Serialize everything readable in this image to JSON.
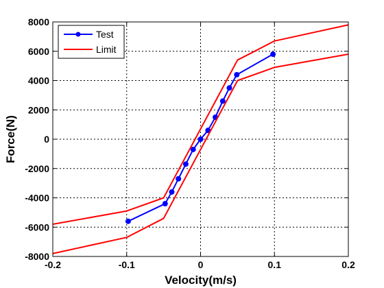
{
  "chart_data": {
    "type": "line",
    "xlabel": "Velocity(m/s)",
    "ylabel": "Force(N)",
    "xlim": [
      -0.2,
      0.2
    ],
    "ylim": [
      -8000,
      8000
    ],
    "xticks": [
      -0.2,
      -0.1,
      0,
      0.1,
      0.2
    ],
    "xtick_labels": [
      "-0.2",
      "-0.1",
      "0",
      "0.1",
      "0.2"
    ],
    "yticks": [
      -8000,
      -6000,
      -4000,
      -2000,
      0,
      2000,
      4000,
      6000,
      8000
    ],
    "ytick_labels": [
      "-8000",
      "-6000",
      "-4000",
      "-2000",
      "0",
      "2000",
      "4000",
      "6000",
      "8000"
    ],
    "grid": true,
    "legend_position": "top-left",
    "series": [
      {
        "name": "Test",
        "color": "#0000ff",
        "marker": "circle",
        "x": [
          -0.098,
          -0.048,
          -0.039,
          -0.03,
          -0.02,
          -0.01,
          0,
          0.01,
          0.02,
          0.03,
          0.039,
          0.049,
          0.098
        ],
        "y": [
          -5600,
          -4400,
          -3600,
          -2700,
          -1700,
          -700,
          0,
          600,
          1500,
          2600,
          3500,
          4400,
          5800
        ]
      },
      {
        "name": "Limit",
        "color": "#ff0000",
        "x": [
          -0.2,
          -0.1,
          -0.05,
          0.05,
          0.1,
          0.2
        ],
        "y": [
          -7800,
          -6700,
          -5400,
          4000,
          4900,
          5800
        ]
      },
      {
        "name": "",
        "color": "#ff0000",
        "x": [
          -0.2,
          -0.1,
          -0.05,
          0.05,
          0.1,
          0.2
        ],
        "y": [
          -5800,
          -4900,
          -4000,
          5400,
          6700,
          7800
        ]
      }
    ]
  }
}
